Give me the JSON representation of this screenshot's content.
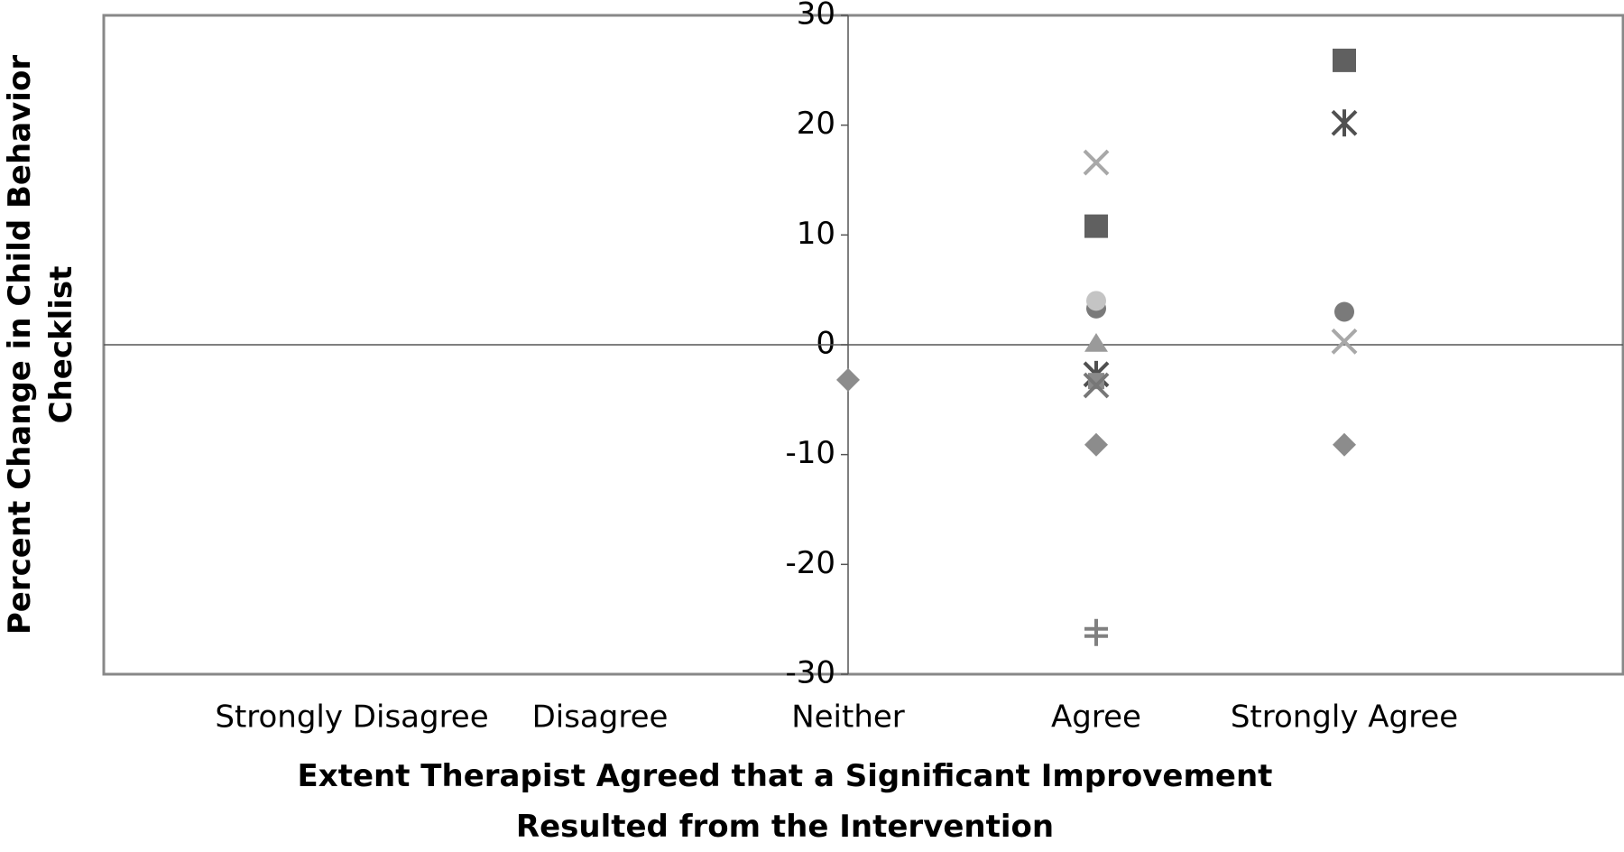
{
  "chart_data": {
    "type": "scatter",
    "x_label": "Extent Therapist Agreed that a Significant Improvement Resulted from the Intervention",
    "y_label": "Percent Change in Child Behavior Checklist",
    "categories": [
      "Strongly Disagree",
      "Disagree",
      "Neither",
      "Agree",
      "Strongly Agree"
    ],
    "ylim": [
      -30,
      30
    ],
    "yticks": [
      -30,
      -20,
      -10,
      0,
      10,
      20,
      30
    ],
    "series": [
      {
        "marker": "diamond",
        "color": "#8c8c8c",
        "values": [
          null,
          null,
          -3.2,
          -9.1,
          -9.1
        ]
      },
      {
        "marker": "square",
        "color": "#606060",
        "values": [
          null,
          null,
          null,
          10.8,
          25.9
        ]
      },
      {
        "marker": "triangle",
        "color": "#9a9a9a",
        "values": [
          null,
          null,
          null,
          0,
          null
        ]
      },
      {
        "marker": "x",
        "color": "#a8a8a8",
        "values": [
          null,
          null,
          null,
          16.6,
          0.3
        ]
      },
      {
        "marker": "asterisk",
        "color": "#505050",
        "values": [
          null,
          null,
          null,
          -2.7,
          20.2
        ]
      },
      {
        "marker": "circle",
        "color": "#7a7a7a",
        "values": [
          null,
          null,
          null,
          3.3,
          3.0
        ]
      },
      {
        "marker": "circle",
        "color": "#c4c4c4",
        "values": [
          null,
          null,
          null,
          4.0,
          null
        ]
      },
      {
        "marker": "plus",
        "color": "#808080",
        "values": [
          null,
          null,
          null,
          -26.2,
          null
        ]
      },
      {
        "marker": "square-small",
        "color": "#8a8a8a",
        "values": [
          null,
          null,
          null,
          -3.3,
          null
        ]
      },
      {
        "marker": "x",
        "color": "#777777",
        "values": [
          null,
          null,
          null,
          -3.7,
          null
        ]
      }
    ]
  }
}
